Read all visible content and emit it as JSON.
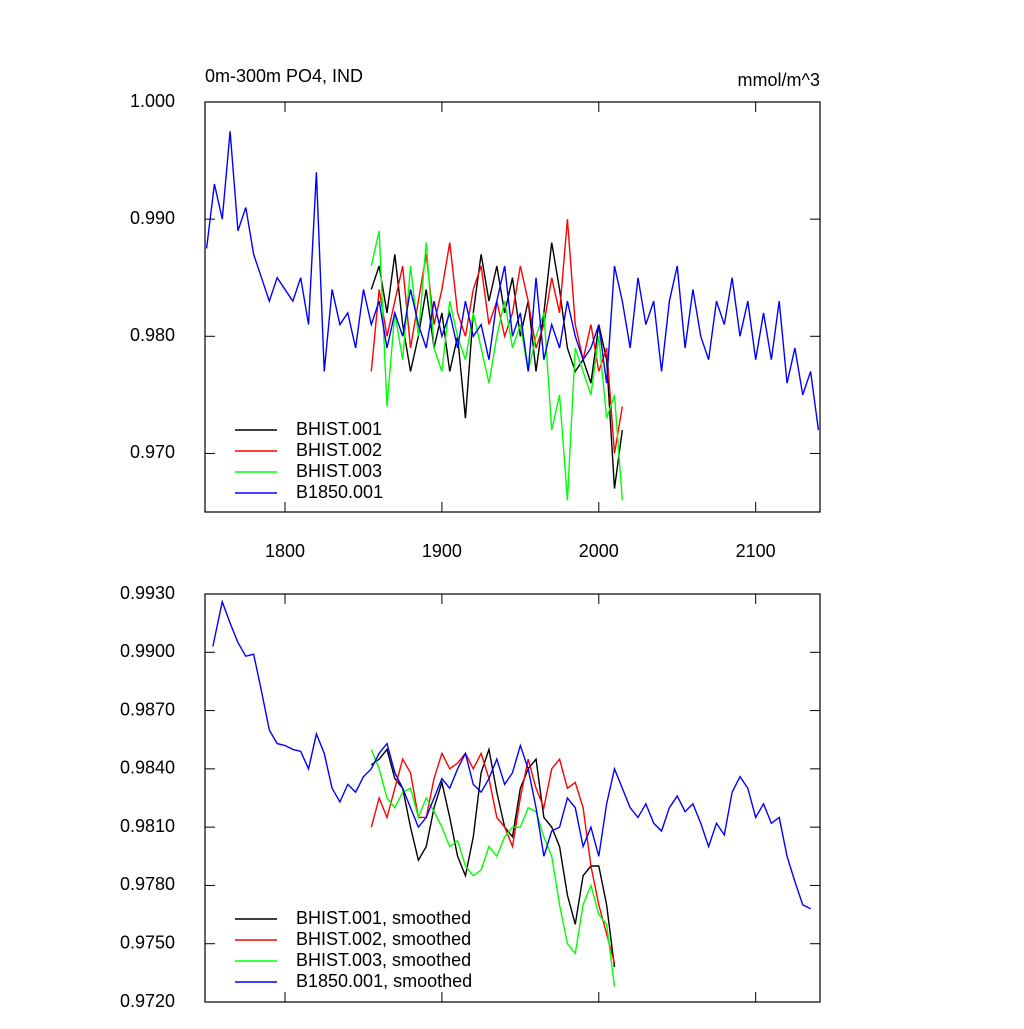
{
  "chart_data": [
    {
      "type": "line",
      "title": "0m-300m PO4, IND",
      "right_title": "mmol/m^3",
      "xlim": [
        1749,
        2141
      ],
      "xticks": [
        1800,
        1900,
        2000,
        2100
      ],
      "ylim": [
        0.965,
        1.0
      ],
      "yticks": [
        {
          "value": 0.97,
          "label": "0.970"
        },
        {
          "value": 0.98,
          "label": "0.980"
        },
        {
          "value": 0.99,
          "label": "0.990"
        },
        {
          "value": 1.0,
          "label": "1.000"
        }
      ],
      "series": [
        {
          "name": "BHIST.001",
          "color": "#000000",
          "x": [
            1855,
            1860,
            1865,
            1870,
            1875,
            1880,
            1885,
            1890,
            1895,
            1900,
            1905,
            1910,
            1915,
            1920,
            1925,
            1930,
            1935,
            1940,
            1945,
            1950,
            1955,
            1960,
            1965,
            1970,
            1975,
            1980,
            1985,
            1990,
            1995,
            2000,
            2005,
            2010,
            2015
          ],
          "values": [
            0.984,
            0.986,
            0.982,
            0.987,
            0.981,
            0.977,
            0.98,
            0.984,
            0.979,
            0.982,
            0.977,
            0.98,
            0.973,
            0.982,
            0.987,
            0.983,
            0.986,
            0.982,
            0.985,
            0.98,
            0.983,
            0.977,
            0.982,
            0.988,
            0.984,
            0.979,
            0.977,
            0.978,
            0.976,
            0.981,
            0.978,
            0.967,
            0.972
          ]
        },
        {
          "name": "BHIST.002",
          "color": "#ff0000",
          "x": [
            1855,
            1860,
            1865,
            1870,
            1875,
            1880,
            1885,
            1890,
            1895,
            1900,
            1905,
            1910,
            1915,
            1920,
            1925,
            1930,
            1935,
            1940,
            1945,
            1950,
            1955,
            1960,
            1965,
            1970,
            1975,
            1980,
            1985,
            1990,
            1995,
            2000,
            2005,
            2010,
            2015
          ],
          "values": [
            0.977,
            0.984,
            0.98,
            0.983,
            0.986,
            0.979,
            0.983,
            0.987,
            0.981,
            0.984,
            0.988,
            0.982,
            0.98,
            0.984,
            0.986,
            0.981,
            0.983,
            0.98,
            0.982,
            0.986,
            0.983,
            0.979,
            0.981,
            0.985,
            0.982,
            0.99,
            0.981,
            0.978,
            0.981,
            0.977,
            0.979,
            0.97,
            0.974
          ]
        },
        {
          "name": "BHIST.003",
          "color": "#00ff00",
          "x": [
            1855,
            1860,
            1865,
            1870,
            1875,
            1880,
            1885,
            1890,
            1895,
            1900,
            1905,
            1910,
            1915,
            1920,
            1925,
            1930,
            1935,
            1940,
            1945,
            1950,
            1955,
            1960,
            1965,
            1970,
            1975,
            1980,
            1985,
            1990,
            1995,
            2000,
            2005,
            2010,
            2015
          ],
          "values": [
            0.986,
            0.989,
            0.974,
            0.982,
            0.978,
            0.986,
            0.98,
            0.988,
            0.979,
            0.977,
            0.983,
            0.98,
            0.978,
            0.982,
            0.979,
            0.976,
            0.98,
            0.983,
            0.979,
            0.981,
            0.977,
            0.98,
            0.982,
            0.972,
            0.975,
            0.966,
            0.979,
            0.977,
            0.975,
            0.98,
            0.973,
            0.975,
            0.966
          ]
        },
        {
          "name": "B1850.001",
          "color": "#0000ff",
          "x": [
            1750,
            1755,
            1760,
            1765,
            1770,
            1775,
            1780,
            1785,
            1790,
            1795,
            1800,
            1805,
            1810,
            1815,
            1820,
            1825,
            1830,
            1835,
            1840,
            1845,
            1850,
            1855,
            1860,
            1865,
            1870,
            1875,
            1880,
            1885,
            1890,
            1895,
            1900,
            1905,
            1910,
            1915,
            1920,
            1925,
            1930,
            1935,
            1940,
            1945,
            1950,
            1955,
            1960,
            1965,
            1970,
            1975,
            1980,
            1985,
            1990,
            1995,
            2000,
            2005,
            2010,
            2015,
            2020,
            2025,
            2030,
            2035,
            2040,
            2045,
            2050,
            2055,
            2060,
            2065,
            2070,
            2075,
            2080,
            2085,
            2090,
            2095,
            2100,
            2105,
            2110,
            2115,
            2120,
            2125,
            2130,
            2135,
            2140
          ],
          "values": [
            0.9875,
            0.993,
            0.99,
            0.9975,
            0.989,
            0.991,
            0.987,
            0.985,
            0.983,
            0.985,
            0.984,
            0.983,
            0.985,
            0.981,
            0.994,
            0.977,
            0.984,
            0.981,
            0.982,
            0.979,
            0.984,
            0.981,
            0.983,
            0.979,
            0.982,
            0.98,
            0.984,
            0.981,
            0.979,
            0.983,
            0.98,
            0.982,
            0.979,
            0.983,
            0.98,
            0.981,
            0.978,
            0.983,
            0.986,
            0.98,
            0.982,
            0.977,
            0.985,
            0.978,
            0.981,
            0.979,
            0.983,
            0.98,
            0.978,
            0.979,
            0.981,
            0.976,
            0.986,
            0.983,
            0.979,
            0.985,
            0.981,
            0.983,
            0.977,
            0.983,
            0.986,
            0.979,
            0.984,
            0.98,
            0.978,
            0.983,
            0.981,
            0.985,
            0.98,
            0.983,
            0.978,
            0.982,
            0.978,
            0.983,
            0.976,
            0.979,
            0.975,
            0.977,
            0.972
          ]
        }
      ]
    },
    {
      "type": "line",
      "xlim": [
        1749,
        2141
      ],
      "ylim": [
        0.972,
        0.993
      ],
      "yticks": [
        {
          "value": 0.972,
          "label": "0.9720"
        },
        {
          "value": 0.975,
          "label": "0.9750"
        },
        {
          "value": 0.978,
          "label": "0.9780"
        },
        {
          "value": 0.981,
          "label": "0.9810"
        },
        {
          "value": 0.984,
          "label": "0.9840"
        },
        {
          "value": 0.987,
          "label": "0.9870"
        },
        {
          "value": 0.99,
          "label": "0.9900"
        },
        {
          "value": 0.993,
          "label": "0.9930"
        }
      ],
      "series": [
        {
          "name": "BHIST.001, smoothed",
          "color": "#000000",
          "x": [
            1855,
            1860,
            1865,
            1870,
            1875,
            1880,
            1885,
            1890,
            1895,
            1900,
            1905,
            1910,
            1915,
            1920,
            1925,
            1930,
            1935,
            1940,
            1945,
            1950,
            1955,
            1960,
            1965,
            1970,
            1975,
            1980,
            1985,
            1990,
            1995,
            2000,
            2005,
            2010
          ],
          "values": [
            0.9842,
            0.9845,
            0.985,
            0.9835,
            0.983,
            0.981,
            0.9793,
            0.98,
            0.982,
            0.9833,
            0.9815,
            0.9795,
            0.9785,
            0.9805,
            0.9838,
            0.985,
            0.9828,
            0.981,
            0.9805,
            0.983,
            0.984,
            0.9845,
            0.9815,
            0.981,
            0.98,
            0.9775,
            0.976,
            0.9785,
            0.979,
            0.979,
            0.977,
            0.9738
          ]
        },
        {
          "name": "BHIST.002, smoothed",
          "color": "#ff0000",
          "x": [
            1855,
            1860,
            1865,
            1870,
            1875,
            1880,
            1885,
            1890,
            1895,
            1900,
            1905,
            1910,
            1915,
            1920,
            1925,
            1930,
            1935,
            1940,
            1945,
            1950,
            1955,
            1960,
            1965,
            1970,
            1975,
            1980,
            1985,
            1990,
            1995,
            2000,
            2005,
            2010
          ],
          "values": [
            0.981,
            0.9825,
            0.9815,
            0.983,
            0.9845,
            0.9838,
            0.9815,
            0.9815,
            0.9835,
            0.9848,
            0.984,
            0.9843,
            0.9848,
            0.984,
            0.9848,
            0.9835,
            0.9815,
            0.981,
            0.98,
            0.9825,
            0.9845,
            0.983,
            0.982,
            0.984,
            0.9845,
            0.983,
            0.9833,
            0.982,
            0.979,
            0.977,
            0.9755,
            0.974
          ]
        },
        {
          "name": "BHIST.003, smoothed",
          "color": "#00ff00",
          "x": [
            1855,
            1860,
            1865,
            1870,
            1875,
            1880,
            1885,
            1890,
            1895,
            1900,
            1905,
            1910,
            1915,
            1920,
            1925,
            1930,
            1935,
            1940,
            1945,
            1950,
            1955,
            1960,
            1965,
            1970,
            1975,
            1980,
            1985,
            1990,
            1995,
            2000,
            2005,
            2010
          ],
          "values": [
            0.985,
            0.984,
            0.9825,
            0.982,
            0.9828,
            0.983,
            0.9815,
            0.9825,
            0.9818,
            0.981,
            0.98,
            0.9803,
            0.979,
            0.9785,
            0.9788,
            0.98,
            0.9795,
            0.9805,
            0.981,
            0.981,
            0.982,
            0.9818,
            0.9805,
            0.9795,
            0.977,
            0.975,
            0.9745,
            0.977,
            0.978,
            0.9765,
            0.976,
            0.9728
          ]
        },
        {
          "name": "B1850.001, smoothed",
          "color": "#0000ff",
          "x": [
            1754,
            1760,
            1765,
            1770,
            1775,
            1780,
            1785,
            1790,
            1795,
            1800,
            1805,
            1810,
            1815,
            1820,
            1825,
            1830,
            1835,
            1840,
            1845,
            1850,
            1855,
            1860,
            1865,
            1870,
            1875,
            1880,
            1885,
            1890,
            1895,
            1900,
            1905,
            1910,
            1915,
            1920,
            1925,
            1930,
            1935,
            1940,
            1945,
            1950,
            1955,
            1960,
            1965,
            1970,
            1975,
            1980,
            1985,
            1990,
            1995,
            2000,
            2005,
            2010,
            2015,
            2020,
            2025,
            2030,
            2035,
            2040,
            2045,
            2050,
            2055,
            2060,
            2065,
            2070,
            2075,
            2080,
            2085,
            2090,
            2095,
            2100,
            2105,
            2110,
            2115,
            2120,
            2125,
            2130,
            2135
          ],
          "values": [
            0.9903,
            0.9926,
            0.9915,
            0.9905,
            0.9898,
            0.9899,
            0.988,
            0.986,
            0.9853,
            0.9852,
            0.985,
            0.9849,
            0.984,
            0.9858,
            0.9848,
            0.983,
            0.9823,
            0.9832,
            0.9828,
            0.9836,
            0.984,
            0.9848,
            0.9853,
            0.9838,
            0.983,
            0.982,
            0.981,
            0.9815,
            0.9825,
            0.9835,
            0.983,
            0.984,
            0.9848,
            0.9832,
            0.9828,
            0.9835,
            0.9845,
            0.9832,
            0.9838,
            0.9852,
            0.984,
            0.982,
            0.9795,
            0.9808,
            0.981,
            0.9825,
            0.982,
            0.98,
            0.981,
            0.9795,
            0.9822,
            0.984,
            0.983,
            0.982,
            0.9815,
            0.9822,
            0.9812,
            0.9808,
            0.982,
            0.9826,
            0.9818,
            0.9822,
            0.9812,
            0.98,
            0.9812,
            0.9806,
            0.9828,
            0.9836,
            0.983,
            0.9815,
            0.9822,
            0.9812,
            0.9815,
            0.9795,
            0.9782,
            0.977,
            0.9768
          ]
        }
      ]
    }
  ]
}
